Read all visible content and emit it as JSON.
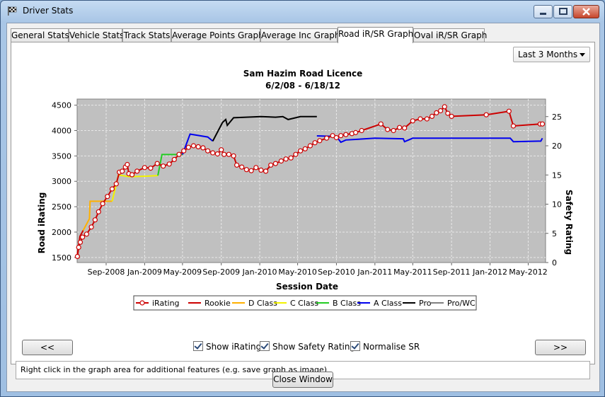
{
  "window": {
    "title": "Driver Stats"
  },
  "tabs": [
    {
      "label": "General Stats"
    },
    {
      "label": "Vehicle Stats"
    },
    {
      "label": "Track Stats"
    },
    {
      "label": "Average Points Graph"
    },
    {
      "label": "Average Inc Graph"
    },
    {
      "label": "Road iR/SR Graph",
      "active": true
    },
    {
      "label": "Oval iR/SR Graph"
    }
  ],
  "period_select": {
    "selected": "Last 3 Months"
  },
  "checkboxes": {
    "show_irating": {
      "label": "Show iRating",
      "checked": true
    },
    "show_safety": {
      "label": "Show Safety Rating",
      "checked": true
    },
    "normalise_sr": {
      "label": "Normalise SR",
      "checked": true
    }
  },
  "buttons": {
    "prev": "<<",
    "next": ">>",
    "close": "Close Window"
  },
  "info_text": "Right click in the graph area for additional features (e.g. save graph as image)",
  "chart_data": {
    "type": "line",
    "title": "Sam Hazim Road Licence",
    "subtitle": "6/2/08 - 6/18/12",
    "xlabel": "Session Date",
    "ylabel_left": "Road iRating",
    "ylabel_right": "Safety Rating",
    "y_left_ticks": [
      1500,
      2000,
      2500,
      3000,
      3500,
      4000,
      4500
    ],
    "y_left_range": [
      1400,
      4620
    ],
    "y_right_ticks": [
      0,
      5,
      10,
      15,
      20,
      25
    ],
    "y_right_range": [
      0,
      28
    ],
    "x_ticks": [
      "Sep-2008",
      "Jan-2009",
      "May-2009",
      "Sep-2009",
      "Jan-2010",
      "May-2010",
      "Sep-2010",
      "Jan-2011",
      "May-2011",
      "Sep-2011",
      "Jan-2012",
      "May-2012"
    ],
    "x_range": [
      "2008-06-01",
      "2012-06-25"
    ],
    "legend": [
      "iRating",
      "Rookie",
      "D Class",
      "C Class",
      "B Class",
      "A Class",
      "Pro",
      "Pro/WC"
    ],
    "legend_position": "bottom",
    "grid": true,
    "colors": {
      "irating": "#cc0000",
      "rookie": "#cc0000",
      "d_class": "#ffb000",
      "c_class": "#f2f200",
      "b_class": "#22cc22",
      "a_class": "#0000ee",
      "pro": "#000000",
      "pro_wc": "#808080",
      "plot_bg": "#c0c0c0"
    },
    "irating_series": [
      [
        "2008-06-02",
        1520
      ],
      [
        "2008-06-06",
        1700
      ],
      [
        "2008-06-11",
        1800
      ],
      [
        "2008-06-18",
        1900
      ],
      [
        "2008-07-01",
        1960
      ],
      [
        "2008-07-16",
        2100
      ],
      [
        "2008-07-28",
        2240
      ],
      [
        "2008-08-08",
        2400
      ],
      [
        "2008-08-21",
        2560
      ],
      [
        "2008-09-05",
        2700
      ],
      [
        "2008-09-20",
        2850
      ],
      [
        "2008-10-03",
        2950
      ],
      [
        "2008-10-13",
        3180
      ],
      [
        "2008-10-22",
        3200
      ],
      [
        "2008-11-01",
        3280
      ],
      [
        "2008-11-07",
        3330
      ],
      [
        "2008-11-12",
        3150
      ],
      [
        "2008-11-22",
        3130
      ],
      [
        "2008-12-08",
        3200
      ],
      [
        "2009-01-01",
        3270
      ],
      [
        "2009-01-20",
        3260
      ],
      [
        "2009-02-10",
        3350
      ],
      [
        "2009-03-01",
        3300
      ],
      [
        "2009-03-20",
        3340
      ],
      [
        "2009-04-05",
        3430
      ],
      [
        "2009-04-20",
        3530
      ],
      [
        "2009-05-05",
        3600
      ],
      [
        "2009-05-20",
        3670
      ],
      [
        "2009-06-05",
        3700
      ],
      [
        "2009-06-20",
        3680
      ],
      [
        "2009-07-05",
        3660
      ],
      [
        "2009-07-20",
        3600
      ],
      [
        "2009-08-05",
        3560
      ],
      [
        "2009-08-20",
        3540
      ],
      [
        "2009-09-01",
        3620
      ],
      [
        "2009-09-10",
        3530
      ],
      [
        "2009-09-25",
        3530
      ],
      [
        "2009-10-10",
        3500
      ],
      [
        "2009-10-20",
        3320
      ],
      [
        "2009-11-05",
        3280
      ],
      [
        "2009-11-20",
        3230
      ],
      [
        "2009-12-05",
        3210
      ],
      [
        "2009-12-20",
        3270
      ],
      [
        "2010-01-05",
        3220
      ],
      [
        "2010-01-20",
        3200
      ],
      [
        "2010-02-05",
        3320
      ],
      [
        "2010-02-20",
        3350
      ],
      [
        "2010-03-10",
        3400
      ],
      [
        "2010-03-25",
        3440
      ],
      [
        "2010-04-10",
        3460
      ],
      [
        "2010-04-25",
        3530
      ],
      [
        "2010-05-10",
        3600
      ],
      [
        "2010-05-25",
        3640
      ],
      [
        "2010-06-10",
        3700
      ],
      [
        "2010-06-25",
        3760
      ],
      [
        "2010-07-10",
        3800
      ],
      [
        "2010-08-01",
        3850
      ],
      [
        "2010-08-20",
        3900
      ],
      [
        "2010-09-01",
        3860
      ],
      [
        "2010-09-15",
        3900
      ],
      [
        "2010-10-01",
        3920
      ],
      [
        "2010-10-20",
        3940
      ],
      [
        "2010-11-01",
        3960
      ],
      [
        "2010-11-20",
        4000
      ],
      [
        "2011-01-20",
        4130
      ],
      [
        "2011-02-10",
        4020
      ],
      [
        "2011-03-01",
        4000
      ],
      [
        "2011-03-20",
        4060
      ],
      [
        "2011-04-05",
        4050
      ],
      [
        "2011-05-01",
        4190
      ],
      [
        "2011-05-25",
        4230
      ],
      [
        "2011-06-15",
        4230
      ],
      [
        "2011-07-01",
        4280
      ],
      [
        "2011-07-15",
        4350
      ],
      [
        "2011-07-28",
        4390
      ],
      [
        "2011-08-10",
        4470
      ],
      [
        "2011-08-20",
        4340
      ],
      [
        "2011-09-01",
        4280
      ],
      [
        "2011-12-20",
        4310
      ],
      [
        "2012-03-01",
        4380
      ],
      [
        "2012-03-15",
        4090
      ],
      [
        "2012-06-08",
        4130
      ],
      [
        "2012-06-15",
        4130
      ]
    ],
    "safety_series": [
      {
        "class": "rookie",
        "points": [
          [
            "2008-06-02",
            1.5
          ],
          [
            "2008-06-10",
            4.5
          ],
          [
            "2008-06-20",
            5.5
          ]
        ]
      },
      {
        "class": "d_class",
        "points": [
          [
            "2008-06-20",
            5.5
          ],
          [
            "2008-07-10",
            7.5
          ],
          [
            "2008-07-12",
            10.5
          ],
          [
            "2008-09-20",
            10.5
          ]
        ]
      },
      {
        "class": "c_class",
        "points": [
          [
            "2008-09-20",
            10.5
          ],
          [
            "2008-10-10",
            15.0
          ],
          [
            "2008-11-15",
            14.7
          ],
          [
            "2009-01-10",
            14.8
          ],
          [
            "2009-02-12",
            14.9
          ]
        ]
      },
      {
        "class": "b_class",
        "points": [
          [
            "2009-02-12",
            14.9
          ],
          [
            "2009-02-25",
            18.5
          ],
          [
            "2009-05-01",
            18.5
          ]
        ]
      },
      {
        "class": "a_class",
        "points": [
          [
            "2009-05-01",
            18.5
          ],
          [
            "2009-05-25",
            22.0
          ],
          [
            "2009-07-20",
            21.5
          ],
          [
            "2009-08-05",
            20.8
          ]
        ]
      },
      {
        "class": "pro",
        "points": [
          [
            "2009-08-05",
            20.8
          ],
          [
            "2009-09-05",
            24.0
          ],
          [
            "2009-09-15",
            24.5
          ],
          [
            "2009-09-20",
            23.5
          ],
          [
            "2009-10-10",
            24.8
          ],
          [
            "2010-01-05",
            25.0
          ],
          [
            "2010-02-20",
            24.9
          ],
          [
            "2010-03-15",
            25.0
          ],
          [
            "2010-04-01",
            24.5
          ],
          [
            "2010-05-10",
            25.0
          ],
          [
            "2010-07-01",
            25.0
          ]
        ]
      },
      {
        "class": "a_class",
        "points": [
          [
            "2010-07-01",
            21.7
          ],
          [
            "2010-09-01",
            21.6
          ],
          [
            "2010-09-15",
            20.6
          ],
          [
            "2010-10-01",
            21.0
          ],
          [
            "2011-01-01",
            21.3
          ],
          [
            "2011-04-01",
            21.2
          ],
          [
            "2011-04-05",
            20.7
          ],
          [
            "2011-05-01",
            21.3
          ],
          [
            "2011-09-01",
            21.3
          ],
          [
            "2012-03-05",
            21.3
          ],
          [
            "2012-03-15",
            20.7
          ],
          [
            "2012-06-10",
            20.8
          ],
          [
            "2012-06-15",
            21.3
          ]
        ]
      }
    ]
  }
}
